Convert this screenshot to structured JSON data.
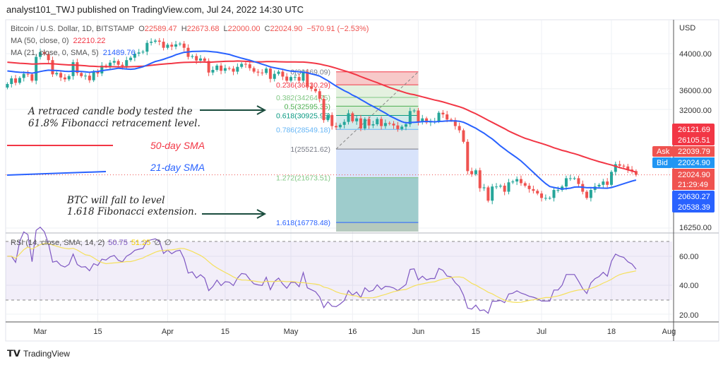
{
  "header": {
    "published": "analyst101_TWJ published on TradingView.com, Jul 24, 2022 14:30 UTC"
  },
  "legend": {
    "symbol": "Bitcoin / U.S. Dollar, 1D, BITSTAMP",
    "o_label": "O",
    "open": "22589.47",
    "h_label": "H",
    "high": "22673.68",
    "l_label": "L",
    "low": "22000.00",
    "c_label": "C",
    "close": "22024.90",
    "change": "−570.91 (−2.53%)",
    "ma50_label": "MA (50, close, 0)",
    "ma50_value": "22210.22",
    "ma21_label": "MA (21, close, 0, SMA, 5)",
    "ma21_value": "21489.76",
    "rsi_label": "RSI (14, close, SMA, 14, 2)",
    "rsi_value": "50.75",
    "rsi_sma_value": "51.25",
    "rsi_na1": "∅",
    "rsi_na2": "∅"
  },
  "price_axis": {
    "currency": "USD",
    "ticks": [
      "44000.00",
      "36000.00",
      "32000.00",
      "16250.00"
    ]
  },
  "badges": {
    "b1": "26121.69",
    "b2": "26105.51",
    "ask_label": "Ask",
    "ask": "22039.79",
    "bid_label": "Bid",
    "bid": "22024.90",
    "last": "22024.90",
    "countdown": "21:29:49",
    "ma50": "20630.27",
    "ma21": "20538.39"
  },
  "rsi_axis": {
    "ticks": [
      "60.00",
      "40.00",
      "20.00"
    ]
  },
  "time_axis": {
    "ticks": [
      "Mar",
      "15",
      "Apr",
      "15",
      "May",
      "16",
      "Jun",
      "15",
      "Jul",
      "18",
      "Aug"
    ]
  },
  "annotations": {
    "note1_line1": "A retraced candle body tested the",
    "note1_line2": "61.8% Fibonacci retracement level.",
    "note2_line1": "BTC will fall to level",
    "note2_line2": "1.618 Fibonacci extension.",
    "sma50": "50-day SMA",
    "sma21": "21-day SMA"
  },
  "fib_labels": [
    "0(39669.09)",
    "0.236(36830.29)",
    "0.382(34264.75)",
    "0.5(32595.35)",
    "0.618(30925.95)",
    "0.786(28549.18)",
    "1(25521.62)",
    "1.272(21673.51)",
    "1.618(16778.48)"
  ],
  "brand": "TradingView",
  "colors": {
    "up": "#26a69a",
    "down": "#ef5350",
    "ma50": "#f23645",
    "ma21": "#2962ff",
    "rsi": "#7e57c2",
    "rsi_sma": "#f5e05c"
  },
  "chart_data": {
    "type": "candlestick",
    "title": "Bitcoin / U.S. Dollar, 1D, BITSTAMP",
    "start_date": "2022-02-21",
    "scale": "log",
    "ylim": [
      16000,
      50000
    ],
    "close": [
      37000,
      38200,
      37250,
      38300,
      39200,
      39100,
      37700,
      43200,
      44400,
      43900,
      42400,
      39100,
      39400,
      38400,
      38000,
      38700,
      41900,
      39400,
      38700,
      38800,
      37800,
      39700,
      39300,
      41100,
      40900,
      41800,
      42200,
      41300,
      41000,
      42400,
      43000,
      44000,
      44300,
      44500,
      46800,
      47100,
      47400,
      47100,
      45500,
      46300,
      45800,
      46400,
      46600,
      45500,
      43200,
      43400,
      42300,
      42800,
      42200,
      39500,
      40100,
      41100,
      39900,
      40500,
      40400,
      39700,
      40800,
      41500,
      41400,
      40500,
      39700,
      39500,
      39400,
      40400,
      38100,
      39200,
      39700,
      38600,
      37700,
      38500,
      38500,
      37700,
      39700,
      36500,
      36000,
      35500,
      34000,
      30100,
      31000,
      29100,
      28900,
      29300,
      29800,
      31300,
      29900,
      30400,
      28700,
      30300,
      29200,
      29400,
      30300,
      29100,
      29600,
      29500,
      29200,
      28600,
      29000,
      29400,
      31700,
      31800,
      29800,
      30400,
      29700,
      29900,
      29900,
      31400,
      31100,
      30200,
      30100,
      29100,
      28400,
      26600,
      22500,
      22100,
      22600,
      20400,
      20500,
      19000,
      20600,
      20600,
      20700,
      20000,
      21100,
      21200,
      21500,
      21000,
      20700,
      20300,
      20100,
      19800,
      19300,
      19300,
      19300,
      20200,
      20200,
      20600,
      21600,
      21600,
      21600,
      20900,
      20000,
      19300,
      20200,
      20600,
      20800,
      21200,
      20800,
      22400,
      23400,
      23200,
      23100,
      22700,
      22500,
      22025
    ],
    "fibonacci": {
      "levels": [
        0,
        0.236,
        0.382,
        0.5,
        0.618,
        0.786,
        1,
        1.272,
        1.618
      ],
      "prices": [
        39669.09,
        36830.29,
        34264.75,
        32595.35,
        30925.95,
        28549.18,
        25521.62,
        21673.51,
        16778.48
      ],
      "start_date": "2022-05-12",
      "end_date": "2022-06-01"
    },
    "rsi": {
      "period": 14,
      "band": [
        30,
        70
      ],
      "ylim": [
        15,
        75
      ]
    }
  }
}
